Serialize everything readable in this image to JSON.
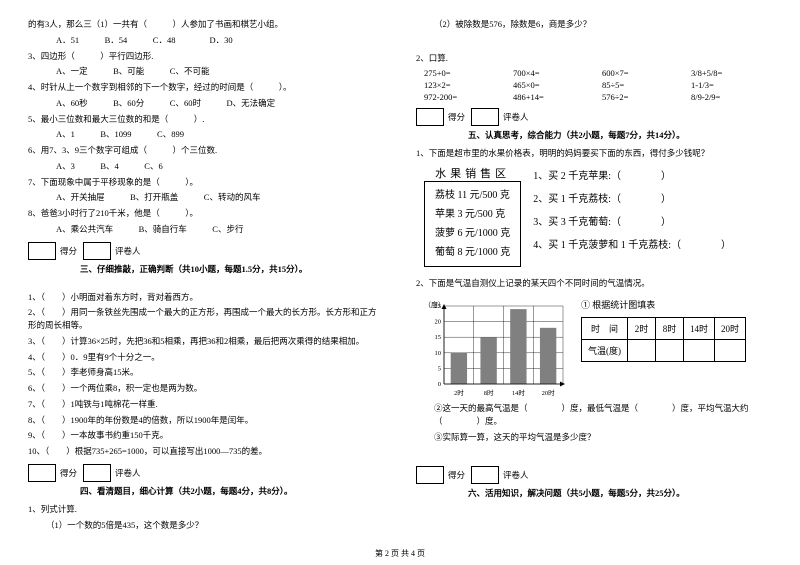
{
  "left": {
    "q_intro": "的有3人，那么三（1）一共有（　　　）人参加了书画和棋艺小组。",
    "q_intro_opts": "A．51　　　B．54　　　C．48　　　　D．30",
    "q3": "3、四边形（　　　）平行四边形.",
    "q3_opts": "A、一定　　　B、可能　　　C、不可能",
    "q4": "4、时针从上一个数字到相邻的下一个数字，经过的时间是（　　　）。",
    "q4_opts": "A、60秒　　　B、60分　　　C、60时　　　D、无法确定",
    "q5": "5、最小三位数和最大三位数的和是（　　　）.",
    "q5_opts": "A、1　　　B、1099　　　C、899",
    "q6": "6、用7、3、9三个数字可组成（　　　）个三位数.",
    "q6_opts": "A、3　　　B、4　　　C、6",
    "q7": "7、下面现象中属于平移现象的是（　　　）。",
    "q7_opts": "A、开关抽屉　　　B、打开瓶盖　　　C、转动的风车",
    "q8": "8、爸爸3小时行了210千米，他是（　　　）。",
    "q8_opts": "A、乘公共汽车　　　B、骑自行车　　　C、步行",
    "sec3_title": "三、仔细推敲，正确判断（共10小题，每题1.5分，共15分）。",
    "p1": "1、（　　）小明面对着东方时，背对着西方。",
    "p2": "2、（　　）用同一条铁丝先围成一个最大的正方形，再围成一个最大的长方形。长方形和正方形的周长相等。",
    "p3": "3、（　　）计算36×25时，先把36和5相乘，再把36和2相乘，最后把两次乘得的结果相加。",
    "p4": "4、（　　）0．9里有9个十分之一。",
    "p5": "5、（　　）李老师身高15米。",
    "p6": "6、（　　）一个两位乘8，积一定也是两为数。",
    "p7": "7、（　　）1吨铁与1吨棉花一样重.",
    "p8": "8、（　　）1900年的年份数是4的倍数，所以1900年是闰年。",
    "p9": "9、（　　）一本故事书约重150千克。",
    "p10": "10、（　　）根据735+265=1000，可以直接写出1000—735的差。",
    "sec4_title": "四、看清题目，细心计算（共2小题，每题4分，共8分）。",
    "calc1": "1、列式计算.",
    "calc1a": "（1）一个数的5倍是435，这个数是多少？",
    "score_label": "得分",
    "reviewer_label": "评卷人"
  },
  "right": {
    "calc1b": "（2）被除数是576，除数是6，商是多少？",
    "calc2": "2、口算.",
    "calc_items": [
      "275+0=",
      "700×4=",
      "600×7=",
      "3/8+5/8=",
      "123×2=",
      "465×0=",
      "85÷5=",
      "1-1/3=",
      "972-200=",
      "486+14=",
      "576÷2=",
      "8/9-2/9="
    ],
    "sec5_title": "五、认真思考，综合能力（共2小题，每题7分，共14分）。",
    "q5_1": "1、下面是超市里的水果价格表，明明的妈妈要买下面的东西，得付多少钱呢？",
    "fruit_title": "水果销售区",
    "fruits": [
      "荔枝 11 元/500 克",
      "苹果 3 元/500 克",
      "菠萝 6 元/1000 克",
      "葡萄 8 元/1000 克"
    ],
    "buy": [
      "1、买 2 千克苹果:（　　　　）",
      "2、买 1 千克荔枝:（　　　　）",
      "3、买 3 千克葡萄:（　　　　）",
      "4、买 1 千克菠萝和 1 千克荔枝:（　　　　）"
    ],
    "q5_2": "2、下面是气温自测仪上记录的某天四个不同时间的气温情况。",
    "chart_y_label": "（度）",
    "chart_y_ticks": [
      25,
      20,
      15,
      10,
      5,
      0
    ],
    "chart_x_ticks": [
      "2时",
      "8时",
      "14时",
      "20时"
    ],
    "chart_bars": [
      10,
      15,
      24,
      18
    ],
    "chart_bar_color": "#808080",
    "chart_grid_color": "#000",
    "table_fill": "① 根据统计图填表",
    "table_header": [
      "时　间",
      "2时",
      "8时",
      "14时",
      "20时"
    ],
    "table_row": "气温(度)",
    "q5_2b": "②这一天的最高气温是（　　　　）度，最低气温是（　　　　）度，平均气温大约（　　　　）度。",
    "q5_2c": "③实际算一算，这天的平均气温是多少度？",
    "sec6_title": "六、活用知识，解决问题（共5小题，每题5分，共25分）。"
  },
  "footer": "第 2 页 共 4 页"
}
